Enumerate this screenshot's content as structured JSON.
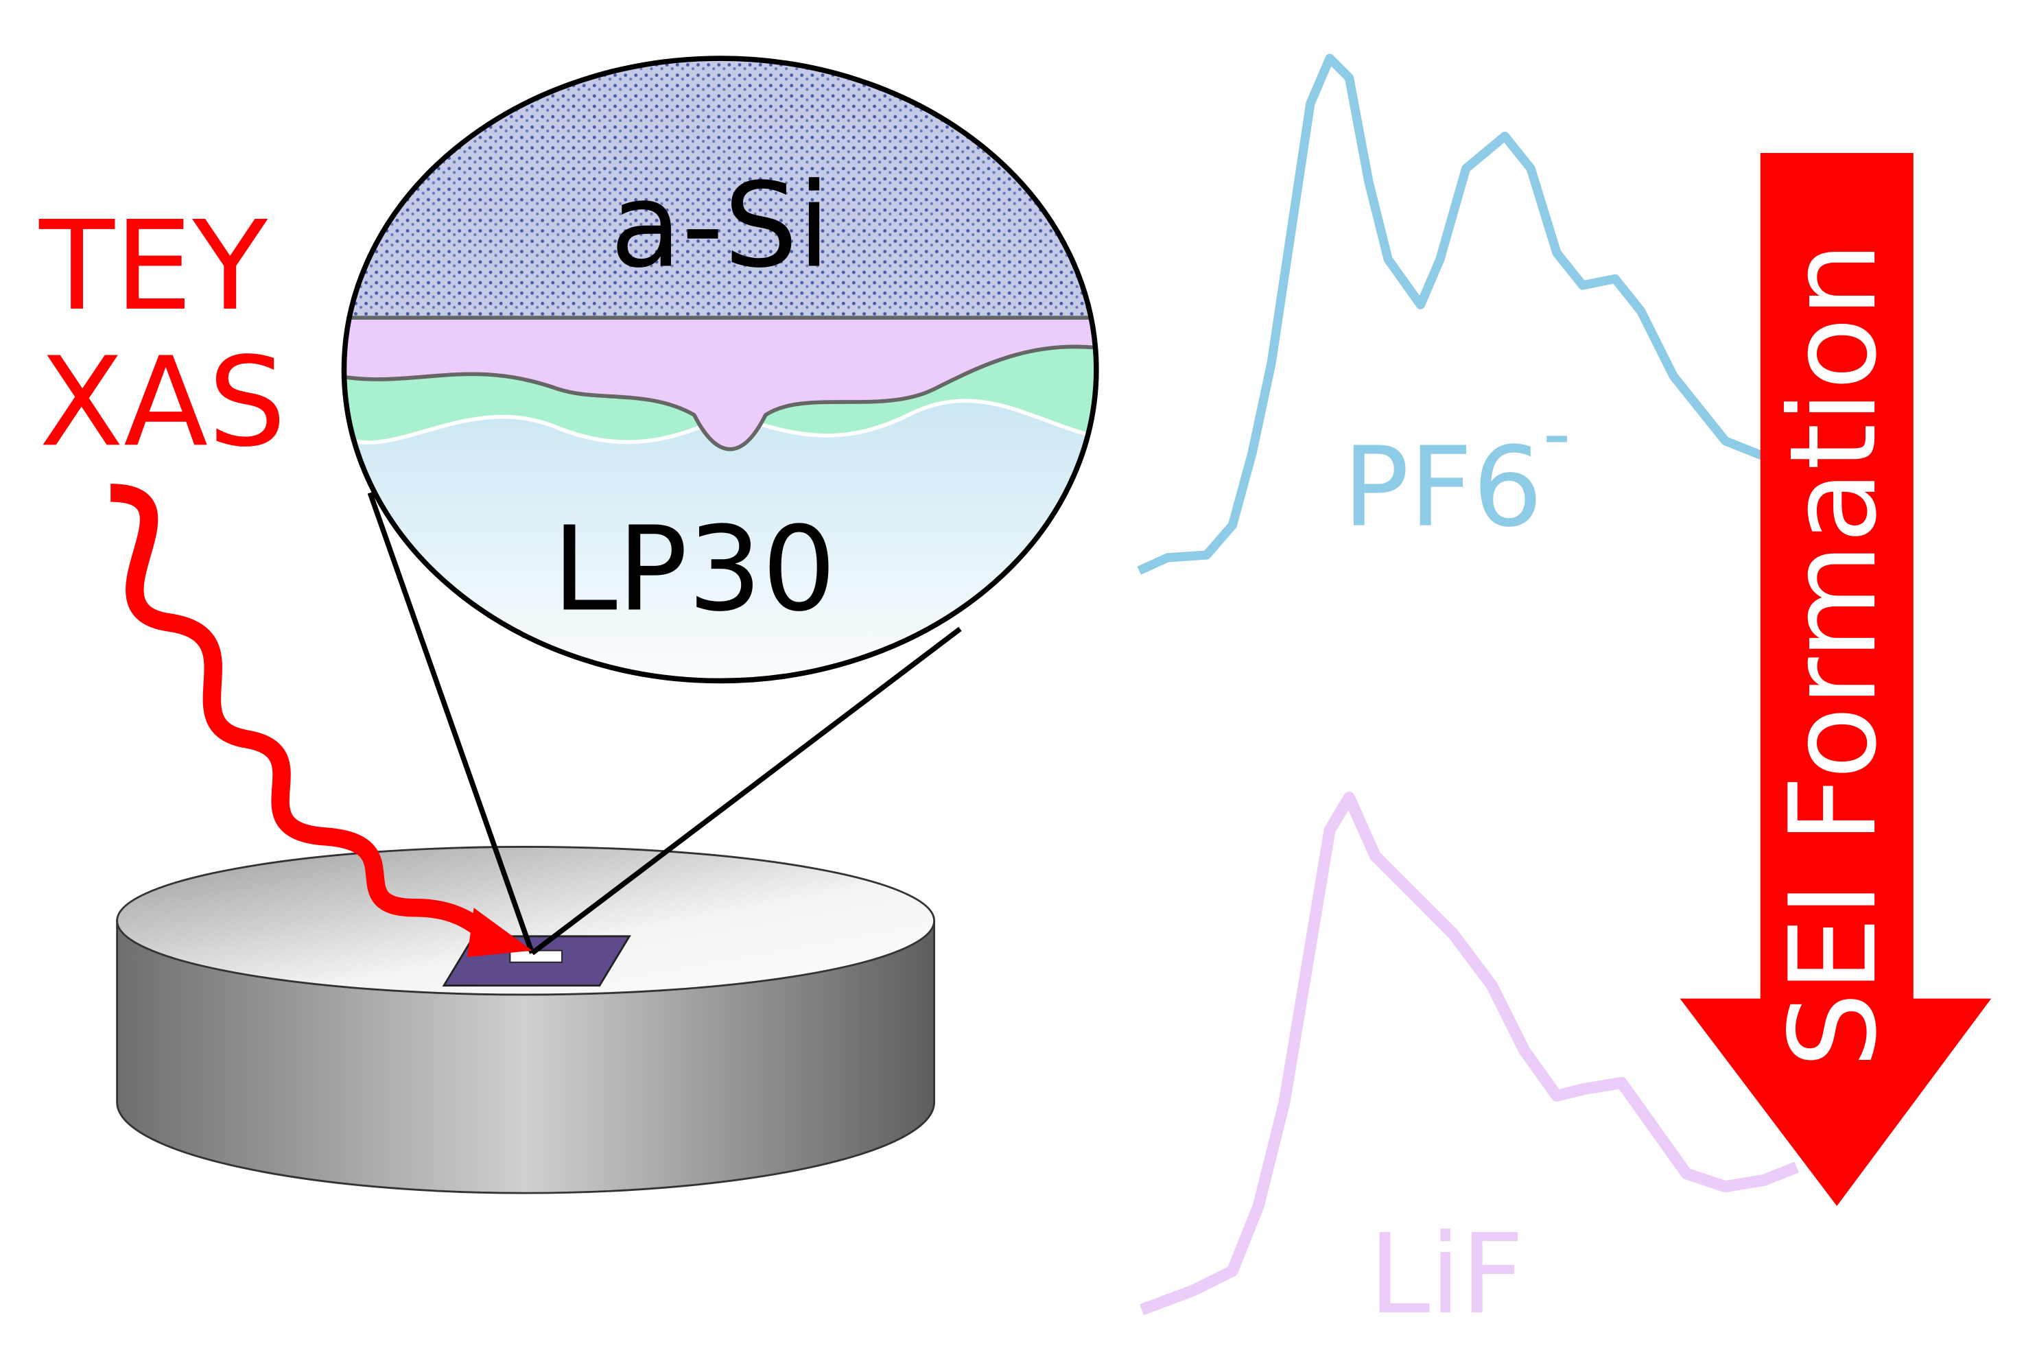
{
  "technique": [
    "TEY",
    "XAS"
  ],
  "layers": {
    "top": "a-Si",
    "electrolyte": "LP30"
  },
  "spectra": [
    {
      "name": "PF6",
      "charge": "-"
    },
    {
      "name": "LiF"
    }
  ],
  "arrow": "SEI Formation"
}
